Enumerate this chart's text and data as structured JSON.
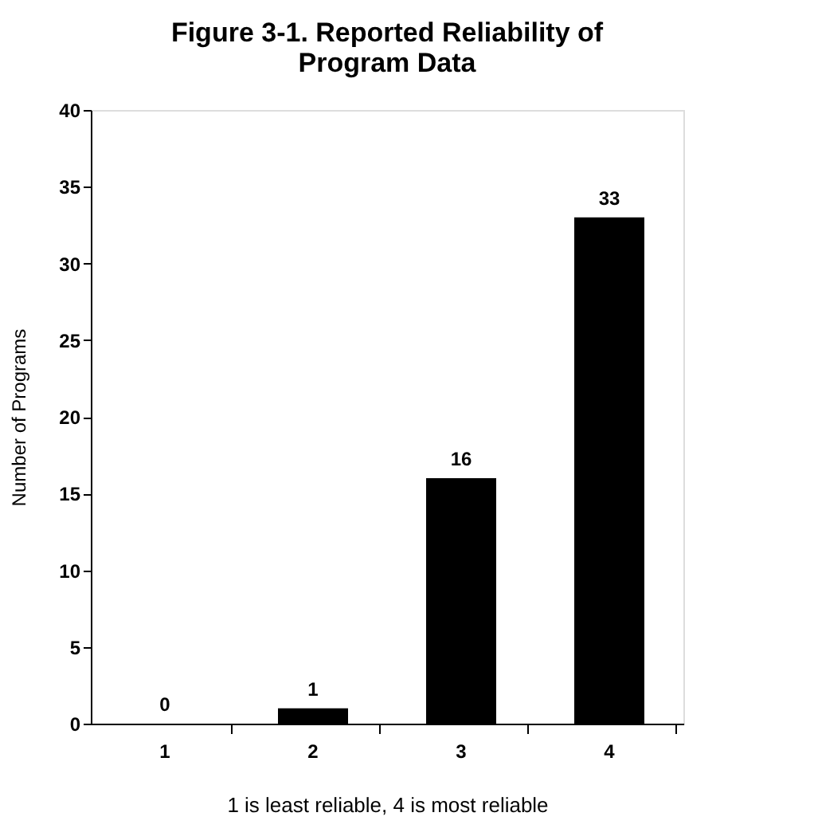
{
  "chart_data": {
    "type": "bar",
    "title": "Figure 3-1.  Reported Reliability of Program Data",
    "ylabel": "Number of Programs",
    "xlabel": "1 is least reliable, 4 is most reliable",
    "categories": [
      "1",
      "2",
      "3",
      "4"
    ],
    "values": [
      0,
      1,
      16,
      33
    ],
    "color": "#000000",
    "ylim": [
      0,
      40
    ],
    "yticks": [
      0,
      5,
      10,
      15,
      20,
      25,
      30,
      35,
      40
    ],
    "grid": false,
    "data_labels": true
  }
}
